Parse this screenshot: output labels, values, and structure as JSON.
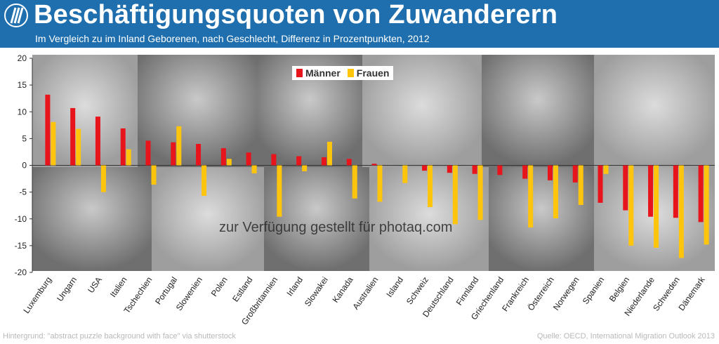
{
  "header": {
    "title": "Beschäftigungsquoten von Zuwanderern",
    "subtitle": "Im Vergleich zu im Inland Geborenen, nach Geschlecht, Differenz in Prozentpunkten, 2012"
  },
  "footer": {
    "background_credit": "Hintergrund: \"abstract puzzle background with face\" via shutterstock",
    "source": "Quelle: OECD, International Migration Outlook 2013",
    "watermark": "zur Verfügung gestellt für photaq.com"
  },
  "colors": {
    "header_bg": "#1f6fae",
    "maenner": "#e8141c",
    "frauen": "#ffc40c"
  },
  "chart_data": {
    "type": "bar",
    "title": "Beschäftigungsquoten von Zuwanderern",
    "ylim": [
      -20,
      20
    ],
    "yticks": [
      20,
      15,
      10,
      5,
      0,
      -5,
      -10,
      -15,
      -20
    ],
    "grid": false,
    "legend_position": "top-center",
    "categories": [
      "Luxemburg",
      "Ungarn",
      "USA",
      "Italien",
      "Tschechien",
      "Portugal",
      "Slowenien",
      "Polen",
      "Estland",
      "Großbritannien",
      "Irland",
      "Slowakei",
      "Kanada",
      "Australien",
      "Island",
      "Schweiz",
      "Deutschland",
      "Finnland",
      "Griechenland",
      "Frankreich",
      "Österreich",
      "Norwegen",
      "Spanien",
      "Belgien",
      "Niederlande",
      "Schweden",
      "Dänemark"
    ],
    "series": [
      {
        "name": "Männer",
        "values": [
          13.2,
          10.7,
          9.1,
          6.9,
          4.6,
          4.3,
          4.0,
          3.2,
          2.4,
          2.1,
          1.7,
          1.5,
          1.2,
          0.3,
          0.0,
          -1.0,
          -1.4,
          -1.6,
          -1.8,
          -2.5,
          -2.8,
          -3.2,
          -7.0,
          -8.4,
          -9.6,
          -9.8,
          -10.6
        ]
      },
      {
        "name": "Frauen",
        "values": [
          8.1,
          6.8,
          -5.0,
          3.0,
          -3.6,
          7.3,
          -5.7,
          1.2,
          -1.5,
          -9.6,
          -1.1,
          4.4,
          -6.2,
          -6.8,
          -3.3,
          -7.8,
          -11.0,
          -10.2,
          0.0,
          -11.6,
          -9.9,
          -7.4,
          -1.6,
          -15.0,
          -15.4,
          -17.3,
          -14.8
        ]
      }
    ]
  }
}
